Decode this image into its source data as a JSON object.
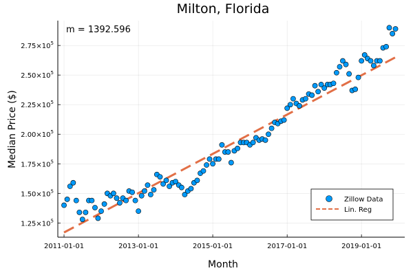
{
  "chart_data": {
    "type": "scatter",
    "title": "Milton, Florida",
    "xlabel": "Month",
    "ylabel": "Median Price ($)",
    "annotation": "m = 1392.596",
    "x_ticks": [
      "2011-01-01",
      "2013-01-01",
      "2015-01-01",
      "2017-01-01",
      "2019-01-01"
    ],
    "y_ticks": [
      {
        "value": 125000,
        "mantissa": "1.25",
        "exp": "5"
      },
      {
        "value": 150000,
        "mantissa": "1.50",
        "exp": "5"
      },
      {
        "value": 175000,
        "mantissa": "1.75",
        "exp": "5"
      },
      {
        "value": 200000,
        "mantissa": "2.00",
        "exp": "5"
      },
      {
        "value": 225000,
        "mantissa": "2.25",
        "exp": "5"
      },
      {
        "value": 250000,
        "mantissa": "2.50",
        "exp": "5"
      },
      {
        "value": 275000,
        "mantissa": "2.75",
        "exp": "5"
      }
    ],
    "xlim": [
      "2010-11-01",
      "2020-03-01"
    ],
    "ylim": [
      113000,
      296000
    ],
    "grid": true,
    "legend_position": "bottom-right",
    "series": [
      {
        "name": "Zillow Data",
        "kind": "scatter",
        "color": "#009AFA",
        "points": [
          [
            "2011-01-01",
            140000
          ],
          [
            "2011-02-01",
            145000
          ],
          [
            "2011-03-01",
            156000
          ],
          [
            "2011-04-01",
            159000
          ],
          [
            "2011-05-01",
            144000
          ],
          [
            "2011-06-01",
            134000
          ],
          [
            "2011-07-01",
            128000
          ],
          [
            "2011-08-01",
            134000
          ],
          [
            "2011-09-01",
            144000
          ],
          [
            "2011-10-01",
            144000
          ],
          [
            "2011-11-01",
            138000
          ],
          [
            "2011-12-01",
            129000
          ],
          [
            "2012-01-01",
            135000
          ],
          [
            "2012-02-01",
            141000
          ],
          [
            "2012-03-01",
            150000
          ],
          [
            "2012-04-01",
            148000
          ],
          [
            "2012-05-01",
            150000
          ],
          [
            "2012-06-01",
            146000
          ],
          [
            "2012-07-01",
            142000
          ],
          [
            "2012-08-01",
            146000
          ],
          [
            "2012-09-01",
            144000
          ],
          [
            "2012-10-01",
            152000
          ],
          [
            "2012-11-01",
            151000
          ],
          [
            "2012-12-01",
            144000
          ],
          [
            "2013-01-01",
            135000
          ],
          [
            "2013-02-01",
            148000
          ],
          [
            "2013-03-01",
            152000
          ],
          [
            "2013-04-01",
            157000
          ],
          [
            "2013-05-01",
            149000
          ],
          [
            "2013-06-01",
            153000
          ],
          [
            "2013-07-01",
            166000
          ],
          [
            "2013-08-01",
            164000
          ],
          [
            "2013-09-01",
            158000
          ],
          [
            "2013-10-01",
            161000
          ],
          [
            "2013-11-01",
            156000
          ],
          [
            "2013-12-01",
            159000
          ],
          [
            "2014-01-01",
            160000
          ],
          [
            "2014-02-01",
            157000
          ],
          [
            "2014-03-01",
            155000
          ],
          [
            "2014-04-01",
            149000
          ],
          [
            "2014-05-01",
            152000
          ],
          [
            "2014-06-01",
            154000
          ],
          [
            "2014-07-01",
            159000
          ],
          [
            "2014-08-01",
            161000
          ],
          [
            "2014-09-01",
            167000
          ],
          [
            "2014-10-01",
            169000
          ],
          [
            "2014-11-01",
            174000
          ],
          [
            "2014-12-01",
            179000
          ],
          [
            "2015-01-01",
            175000
          ],
          [
            "2015-02-01",
            179000
          ],
          [
            "2015-03-01",
            179000
          ],
          [
            "2015-04-01",
            191000
          ],
          [
            "2015-05-01",
            185000
          ],
          [
            "2015-06-01",
            185000
          ],
          [
            "2015-07-01",
            176000
          ],
          [
            "2015-08-01",
            186000
          ],
          [
            "2015-09-01",
            188000
          ],
          [
            "2015-10-01",
            193000
          ],
          [
            "2015-11-01",
            193000
          ],
          [
            "2015-12-01",
            193000
          ],
          [
            "2016-01-01",
            191000
          ],
          [
            "2016-02-01",
            193000
          ],
          [
            "2016-03-01",
            197000
          ],
          [
            "2016-04-01",
            195000
          ],
          [
            "2016-05-01",
            196000
          ],
          [
            "2016-06-01",
            195000
          ],
          [
            "2016-07-01",
            200000
          ],
          [
            "2016-08-01",
            205000
          ],
          [
            "2016-09-01",
            210000
          ],
          [
            "2016-10-01",
            209000
          ],
          [
            "2016-11-01",
            211000
          ],
          [
            "2016-12-01",
            212000
          ],
          [
            "2017-01-01",
            222000
          ],
          [
            "2017-02-01",
            225000
          ],
          [
            "2017-03-01",
            230000
          ],
          [
            "2017-04-01",
            226000
          ],
          [
            "2017-05-01",
            224000
          ],
          [
            "2017-06-01",
            229000
          ],
          [
            "2017-07-01",
            230000
          ],
          [
            "2017-08-01",
            234000
          ],
          [
            "2017-09-01",
            233000
          ],
          [
            "2017-10-01",
            241000
          ],
          [
            "2017-11-01",
            236000
          ],
          [
            "2017-12-01",
            242000
          ],
          [
            "2018-01-01",
            239000
          ],
          [
            "2018-02-01",
            242000
          ],
          [
            "2018-03-01",
            242000
          ],
          [
            "2018-04-01",
            243000
          ],
          [
            "2018-05-01",
            252000
          ],
          [
            "2018-06-01",
            257000
          ],
          [
            "2018-07-01",
            262000
          ],
          [
            "2018-08-01",
            259000
          ],
          [
            "2018-09-01",
            251000
          ],
          [
            "2018-10-01",
            237000
          ],
          [
            "2018-11-01",
            238000
          ],
          [
            "2018-12-01",
            248000
          ],
          [
            "2019-01-01",
            262000
          ],
          [
            "2019-02-01",
            267000
          ],
          [
            "2019-03-01",
            264000
          ],
          [
            "2019-04-01",
            262000
          ],
          [
            "2019-05-01",
            258000
          ],
          [
            "2019-06-01",
            262000
          ],
          [
            "2019-07-01",
            262000
          ],
          [
            "2019-08-01",
            273000
          ],
          [
            "2019-09-01",
            274000
          ],
          [
            "2019-10-01",
            290000
          ],
          [
            "2019-11-01",
            285000
          ],
          [
            "2019-12-01",
            289000
          ]
        ]
      },
      {
        "name": "Lin. Reg",
        "kind": "line",
        "style": "dashed",
        "color": "#E26F46",
        "points": [
          [
            "2011-01-01",
            117000
          ],
          [
            "2019-12-01",
            265000
          ]
        ]
      }
    ]
  }
}
